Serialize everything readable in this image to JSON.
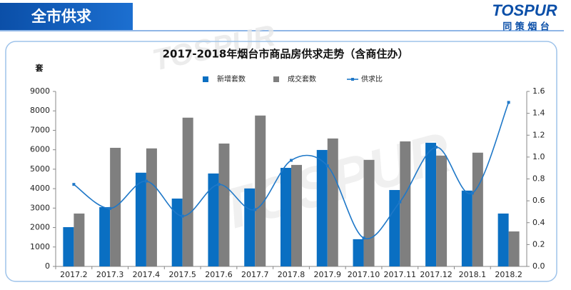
{
  "header": {
    "title": "全市供求"
  },
  "brand": {
    "name": "TOSPUR",
    "subtitle": "同 策 烟 台"
  },
  "chart_data": {
    "type": "bar",
    "title": "2017-2018年烟台市商品房供求走势（含商住办）",
    "y_label": "套",
    "categories": [
      "2017.2",
      "2017.3",
      "2017.4",
      "2017.5",
      "2017.6",
      "2017.7",
      "2017.8",
      "2017.9",
      "2017.10",
      "2017.11",
      "2017.12",
      "2018.1",
      "2018.2"
    ],
    "series": [
      {
        "name": "新增套数",
        "color": "#0a6fc2",
        "type": "bar",
        "values": [
          2020,
          3050,
          4820,
          3490,
          4780,
          4010,
          5070,
          5990,
          1400,
          3930,
          6360,
          3900,
          2720
        ]
      },
      {
        "name": "成交套数",
        "color": "#7f7f7f",
        "type": "bar",
        "values": [
          2720,
          6100,
          6070,
          7650,
          6320,
          7760,
          5220,
          6580,
          5480,
          6430,
          5700,
          5850,
          1800
        ]
      },
      {
        "name": "供求比",
        "color": "#1f78c8",
        "type": "line",
        "axis": "y2",
        "values": [
          0.75,
          0.53,
          0.78,
          0.46,
          0.75,
          0.52,
          0.97,
          0.92,
          0.26,
          0.59,
          1.09,
          0.67,
          1.5
        ]
      }
    ],
    "ylim": [
      0,
      9000
    ],
    "yticks": [
      0,
      1000,
      2000,
      3000,
      4000,
      5000,
      6000,
      7000,
      8000,
      9000
    ],
    "y2lim": [
      0,
      1.6
    ],
    "y2ticks": [
      {
        "value": 0,
        "label": "0.0"
      },
      0.2,
      0.4,
      0.6,
      0.8,
      {
        "value": 1,
        "label": "1.0"
      },
      1.2,
      1.4,
      1.6
    ],
    "grid": false,
    "legend": "top"
  }
}
